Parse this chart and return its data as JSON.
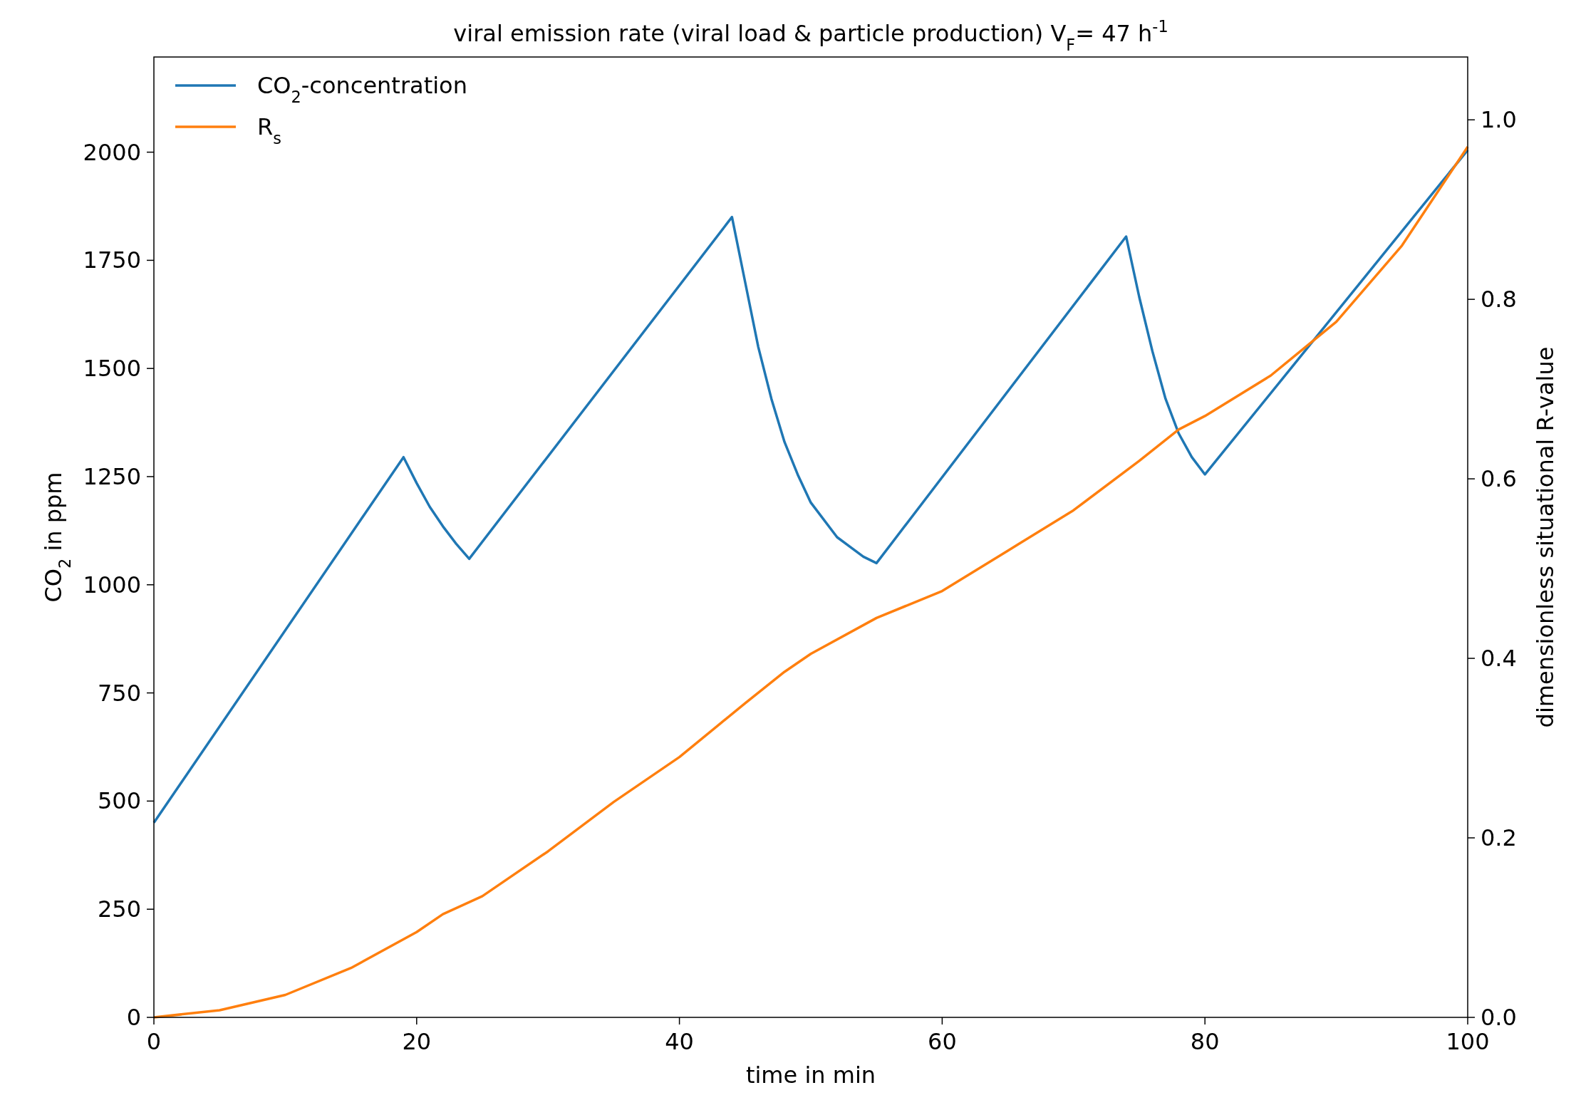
{
  "chart_data": {
    "type": "line",
    "title": "viral emission rate (viral load & particle production) V$_{F}$= 47 h$^{-1}$",
    "xlabel": "time in min",
    "ylabel": "CO$_{2}$ in ppm",
    "y2label": "dimensionless situational R-value",
    "xlim": [
      0,
      100
    ],
    "xticks": [
      0,
      20,
      40,
      60,
      80,
      100
    ],
    "ylim": [
      0,
      2220
    ],
    "yticks": [
      0,
      250,
      500,
      750,
      1000,
      1250,
      1500,
      1750,
      2000
    ],
    "y2lim": [
      0,
      1.07
    ],
    "y2ticks": [
      {
        "value": 0,
        "label": "0.0"
      },
      0.2,
      0.4,
      0.6,
      0.8,
      {
        "value": 1,
        "label": "1.0"
      }
    ],
    "legend": "top left",
    "grid": false,
    "line_style": "solid",
    "series": [
      {
        "name": "CO$_{2}$-concentration",
        "color": "#1f77b4",
        "x": [
          0,
          19,
          20,
          21,
          22,
          23,
          24,
          44,
          45,
          46,
          47,
          48,
          49,
          50,
          52,
          54,
          55,
          74,
          75,
          76,
          77,
          78,
          79,
          80,
          100
        ],
        "values": [
          450,
          1295,
          1235,
          1180,
          1135,
          1095,
          1060,
          1850,
          1700,
          1550,
          1430,
          1330,
          1255,
          1190,
          1110,
          1065,
          1050,
          1805,
          1665,
          1540,
          1430,
          1350,
          1295,
          1255,
          2005
        ]
      },
      {
        "name": "R$_{s}$",
        "color": "#ff7f0e",
        "axis": "y2",
        "x": [
          0,
          5,
          10,
          15,
          20,
          22,
          25,
          30,
          35,
          40,
          45,
          48,
          50,
          55,
          60,
          65,
          70,
          75,
          78,
          80,
          85,
          90,
          95,
          100
        ],
        "values": [
          0,
          0.008,
          0.025,
          0.055,
          0.095,
          0.115,
          0.135,
          0.185,
          0.24,
          0.29,
          0.35,
          0.385,
          0.405,
          0.445,
          0.475,
          0.52,
          0.565,
          0.62,
          0.655,
          0.67,
          0.715,
          0.775,
          0.86,
          0.97
        ]
      }
    ]
  }
}
